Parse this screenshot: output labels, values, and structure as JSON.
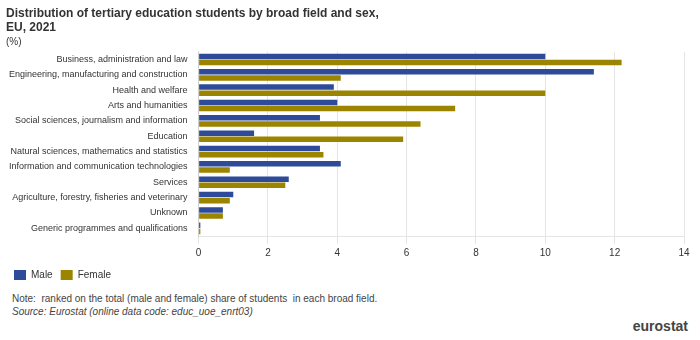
{
  "chart_data": {
    "type": "bar",
    "orientation": "horizontal",
    "title": [
      "Distribution of tertiary education students by broad field and sex,",
      "EU, 2021"
    ],
    "subtitle": "(%)",
    "categories": [
      "Business, administration and law",
      "Engineering, manufacturing and construction",
      "Health and welfare",
      "Arts and humanities",
      "Social sciences, journalism and information",
      "Education",
      "Natural sciences, mathematics and statistics",
      "Information and communication technologies",
      "Services",
      "Agriculture, forestry, fisheries and veterinary",
      "Unknown",
      "Generic programmes and qualifications"
    ],
    "series": [
      {
        "name": "Male",
        "color": "#2E4B9A",
        "values": [
          10.0,
          11.4,
          3.9,
          4.0,
          3.5,
          1.6,
          3.5,
          4.1,
          2.6,
          1.0,
          0.7,
          0.05
        ]
      },
      {
        "name": "Female",
        "color": "#9B8400",
        "values": [
          12.2,
          4.1,
          10.0,
          7.4,
          6.4,
          5.9,
          3.6,
          0.9,
          2.5,
          0.9,
          0.7,
          0.05
        ]
      }
    ],
    "xlim": [
      0,
      14
    ],
    "xticks": [
      0,
      2,
      4,
      6,
      8,
      10,
      12,
      14
    ],
    "grid": true,
    "legend": "bottom",
    "annotations": [
      "Note:  ranked on the total (male and female) share of students  in each broad field.",
      "Source: Eurostat (online data code: educ_uoe_enrt03)",
      "eurostat"
    ]
  }
}
